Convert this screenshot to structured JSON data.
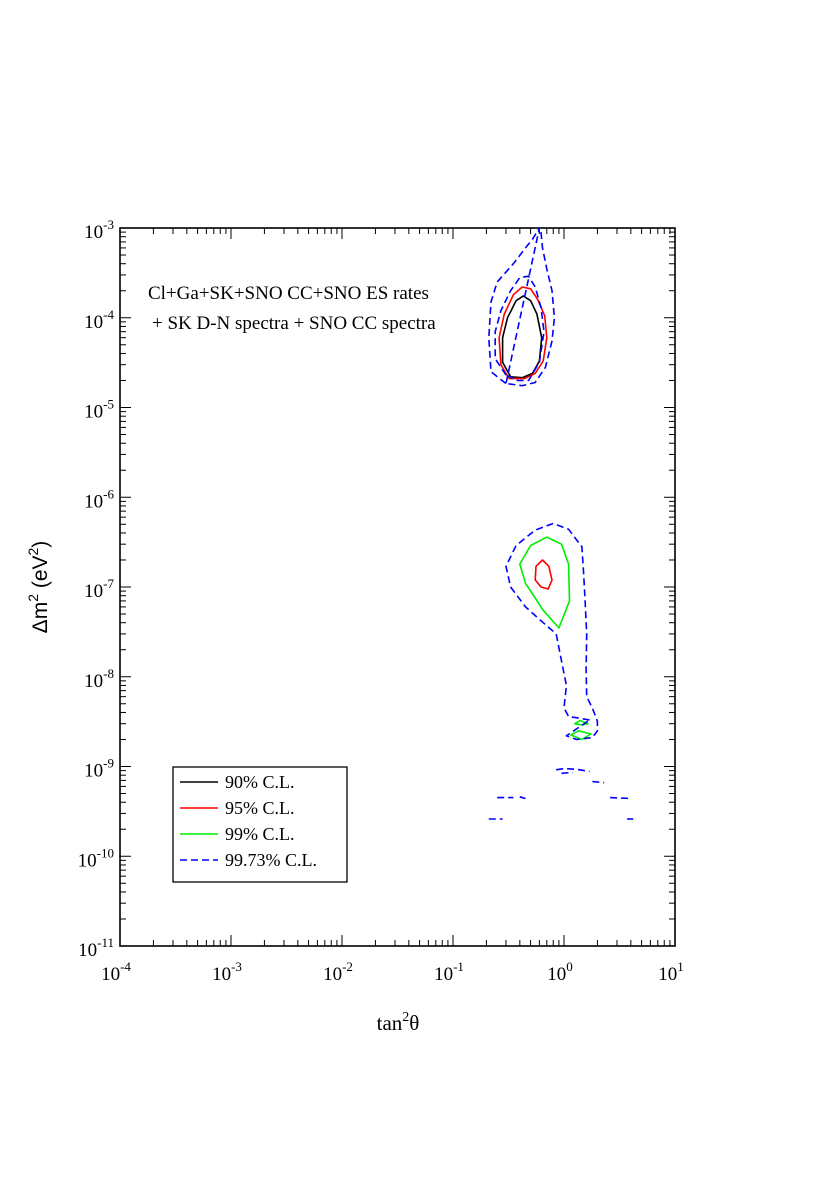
{
  "chart_data": {
    "type": "contour",
    "xlabel": {
      "base": "tan",
      "sup": "2",
      "tail": "θ"
    },
    "ylabel": {
      "pre": "Δm",
      "sup1": "2",
      "mid": " (eV",
      "sup2": "2",
      "post": ")"
    },
    "x_scale": "log",
    "y_scale": "log",
    "xlim": [
      0.0001,
      10
    ],
    "ylim": [
      1e-11,
      0.001
    ],
    "x_ticks": [
      {
        "base": "10",
        "exp": "-4",
        "value": 0.0001
      },
      {
        "base": "10",
        "exp": "-3",
        "value": 0.001
      },
      {
        "base": "10",
        "exp": "-2",
        "value": 0.01
      },
      {
        "base": "10",
        "exp": "-1",
        "value": 0.1
      },
      {
        "base": "10",
        "exp": "0",
        "value": 1
      },
      {
        "base": "10",
        "exp": "1",
        "value": 10
      }
    ],
    "y_ticks": [
      {
        "base": "10",
        "exp": "-11",
        "value": 1e-11
      },
      {
        "base": "10",
        "exp": "-10",
        "value": 1e-10
      },
      {
        "base": "10",
        "exp": "-9",
        "value": 1e-09
      },
      {
        "base": "10",
        "exp": "-8",
        "value": 1e-08
      },
      {
        "base": "10",
        "exp": "-7",
        "value": 1e-07
      },
      {
        "base": "10",
        "exp": "-6",
        "value": 1e-06
      },
      {
        "base": "10",
        "exp": "-5",
        "value": 1e-05
      },
      {
        "base": "10",
        "exp": "-4",
        "value": 0.0001
      },
      {
        "base": "10",
        "exp": "-3",
        "value": 0.001
      }
    ],
    "annotation": [
      "Cl+Ga+SK+SNO CC+SNO ES rates",
      "+ SK D-N spectra + SNO CC spectra"
    ],
    "legend_position": "bottom-left",
    "series": [
      {
        "name": "90% C.L.",
        "color": "#000000",
        "dash": "solid",
        "contours": [
          {
            "closed": true,
            "points": [
              [
                0.33,
                2.2e-05
              ],
              [
                0.28,
                3.2e-05
              ],
              [
                0.28,
                6e-05
              ],
              [
                0.31,
                0.0001
              ],
              [
                0.37,
                0.000155
              ],
              [
                0.43,
                0.000175
              ],
              [
                0.5,
                0.000155
              ],
              [
                0.57,
                0.00011
              ],
              [
                0.63,
                6e-05
              ],
              [
                0.6,
                3.3e-05
              ],
              [
                0.52,
                2.4e-05
              ],
              [
                0.42,
                2.15e-05
              ]
            ]
          }
        ]
      },
      {
        "name": "95% C.L.",
        "color": "#ff0000",
        "dash": "solid",
        "contours": [
          {
            "closed": true,
            "points": [
              [
                0.32,
                2.1e-05
              ],
              [
                0.27,
                3e-05
              ],
              [
                0.26,
                6e-05
              ],
              [
                0.29,
                0.00011
              ],
              [
                0.35,
                0.00018
              ],
              [
                0.42,
                0.00022
              ],
              [
                0.5,
                0.00021
              ],
              [
                0.58,
                0.00016
              ],
              [
                0.67,
                0.000105
              ],
              [
                0.7,
                6e-05
              ],
              [
                0.65,
                3.3e-05
              ],
              [
                0.55,
                2.4e-05
              ],
              [
                0.44,
                2.1e-05
              ]
            ]
          },
          {
            "closed": true,
            "points": [
              [
                0.62,
                1e-07
              ],
              [
                0.55,
                1.2e-07
              ],
              [
                0.56,
                1.7e-07
              ],
              [
                0.64,
                2e-07
              ],
              [
                0.73,
                1.7e-07
              ],
              [
                0.78,
                1.2e-07
              ],
              [
                0.72,
                9.5e-08
              ]
            ]
          }
        ]
      },
      {
        "name": "99% C.L.",
        "color": "#00ee00",
        "dash": "solid",
        "contours": [
          {
            "closed": true,
            "points": [
              [
                0.9,
                3.5e-08
              ],
              [
                0.65,
                5.5e-08
              ],
              [
                0.45,
                1.1e-07
              ],
              [
                0.4,
                1.8e-07
              ],
              [
                0.5,
                2.9e-07
              ],
              [
                0.7,
                3.6e-07
              ],
              [
                0.95,
                3e-07
              ],
              [
                1.1,
                1.8e-07
              ],
              [
                1.12,
                7e-08
              ]
            ]
          },
          {
            "closed": true,
            "points": [
              [
                1.25,
                3e-09
              ],
              [
                1.4,
                3.25e-09
              ],
              [
                1.65,
                3e-09
              ],
              [
                1.45,
                2.9e-09
              ]
            ]
          },
          {
            "closed": true,
            "points": [
              [
                1.15,
                2.25e-09
              ],
              [
                1.35,
                2.5e-09
              ],
              [
                1.75,
                2.3e-09
              ],
              [
                1.45,
                2e-09
              ]
            ]
          }
        ]
      },
      {
        "name": "99.73% C.L.",
        "color": "#0000ff",
        "dash": "dashed",
        "contours": [
          {
            "closed": true,
            "points": [
              [
                0.3,
                1.85e-05
              ],
              [
                0.22,
                2.5e-05
              ],
              [
                0.21,
                6e-05
              ],
              [
                0.22,
                0.00015
              ],
              [
                0.25,
                0.00025
              ],
              [
                0.35,
                0.0004
              ],
              [
                0.45,
                0.0006
              ],
              [
                0.52,
                0.00075
              ],
              [
                0.6,
                0.001
              ]
            ]
          },
          {
            "closed": false,
            "points": [
              [
                0.62,
                0.0009
              ],
              [
                0.64,
                0.0006
              ],
              [
                0.7,
                0.00035
              ],
              [
                0.78,
                0.0002
              ],
              [
                0.82,
                0.0001
              ],
              [
                0.78,
                5.5e-05
              ],
              [
                0.68,
                2.8e-05
              ],
              [
                0.55,
                1.9e-05
              ],
              [
                0.42,
                1.75e-05
              ],
              [
                0.3,
                1.85e-05
              ]
            ]
          },
          {
            "closed": true,
            "points": [
              [
                0.3,
                2.3e-05
              ],
              [
                0.24,
                3.5e-05
              ],
              [
                0.24,
                7e-05
              ],
              [
                0.27,
                0.00012
              ],
              [
                0.33,
                0.0002
              ],
              [
                0.4,
                0.00028
              ],
              [
                0.48,
                0.00029
              ],
              [
                0.55,
                0.00022
              ],
              [
                0.62,
                0.00013
              ],
              [
                0.66,
                7e-05
              ],
              [
                0.6,
                3.2e-05
              ],
              [
                0.48,
                2e-05
              ],
              [
                0.38,
                2e-05
              ]
            ]
          },
          {
            "closed": true,
            "points": [
              [
                1.7,
                3.3e-09
              ],
              [
                1.3,
                3.5e-09
              ],
              [
                1.1,
                3.6e-09
              ],
              [
                1.0,
                4.5e-09
              ],
              [
                1.05,
                8e-09
              ],
              [
                0.95,
                1.5e-08
              ],
              [
                0.85,
                3e-08
              ],
              [
                0.65,
                4e-08
              ],
              [
                0.45,
                6e-08
              ],
              [
                0.33,
                1e-07
              ],
              [
                0.3,
                1.7e-07
              ],
              [
                0.37,
                2.9e-07
              ],
              [
                0.55,
                4.3e-07
              ],
              [
                0.8,
                5.1e-07
              ],
              [
                1.1,
                4.4e-07
              ],
              [
                1.45,
                2.8e-07
              ],
              [
                1.5,
                1.5e-07
              ],
              [
                1.55,
                7e-08
              ],
              [
                1.6,
                3e-08
              ],
              [
                1.58,
                1.2e-08
              ],
              [
                1.6,
                6e-09
              ],
              [
                1.8,
                4.5e-09
              ],
              [
                2.0,
                3.2e-09
              ],
              [
                2.0,
                2.5e-09
              ],
              [
                1.8,
                2.1e-09
              ],
              [
                1.3,
                2e-09
              ],
              [
                1.05,
                2.2e-09
              ]
            ]
          },
          {
            "closed": false,
            "points": [
              [
                0.85,
                9.2e-10
              ],
              [
                1.0,
                9.5e-10
              ],
              [
                1.3,
                9.3e-10
              ],
              [
                1.7,
                8.8e-10
              ]
            ]
          },
          {
            "closed": false,
            "points": [
              [
                0.95,
                8.4e-10
              ],
              [
                1.2,
                8.6e-10
              ]
            ]
          },
          {
            "closed": false,
            "points": [
              [
                1.8,
                6.8e-10
              ],
              [
                2.3,
                6.6e-10
              ]
            ]
          },
          {
            "closed": false,
            "points": [
              [
                0.25,
                4.5e-10
              ],
              [
                0.35,
                4.5e-10
              ]
            ]
          },
          {
            "closed": false,
            "points": [
              [
                0.4,
                4.6e-10
              ],
              [
                0.45,
                4.4e-10
              ]
            ]
          },
          {
            "closed": false,
            "points": [
              [
                2.6,
                4.5e-10
              ],
              [
                4.0,
                4.4e-10
              ]
            ]
          },
          {
            "closed": false,
            "points": [
              [
                0.21,
                2.6e-10
              ],
              [
                0.28,
                2.6e-10
              ]
            ]
          },
          {
            "closed": false,
            "points": [
              [
                3.7,
                2.6e-10
              ],
              [
                4.2,
                2.6e-10
              ]
            ]
          }
        ]
      }
    ]
  }
}
